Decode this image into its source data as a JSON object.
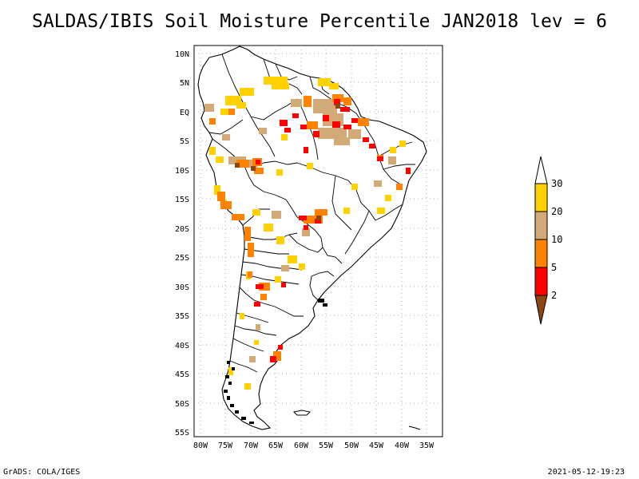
{
  "title": "SALDAS/IBIS Soil Moisture Percentile JAN2018 lev = 6",
  "map": {
    "lat_labels": [
      "10N",
      "5N",
      "EQ",
      "5S",
      "10S",
      "15S",
      "20S",
      "25S",
      "30S",
      "35S",
      "40S",
      "45S",
      "50S",
      "55S"
    ],
    "lon_labels": [
      "80W",
      "75W",
      "70W",
      "65W",
      "60W",
      "55W",
      "50W",
      "45W",
      "40W",
      "35W"
    ],
    "land_fill": "#ffffff",
    "border_color": "#000000"
  },
  "colorbar": {
    "labels": [
      "30",
      "20",
      "10",
      "5",
      "2"
    ],
    "colors": {
      "above30": "#ffffff",
      "c20_30": "#ffd200",
      "c10_20": "#d2aa78",
      "c5_10": "#ff8200",
      "c2_5": "#ff0000",
      "below2": "#8c4614"
    }
  },
  "footer": {
    "left": "GrADS: COLA/IGES",
    "right": "2021-05-12-19:23"
  }
}
